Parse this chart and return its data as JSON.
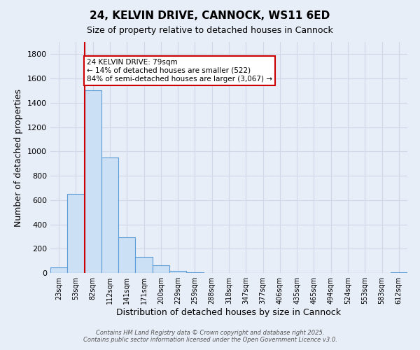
{
  "title": "24, KELVIN DRIVE, CANNOCK, WS11 6ED",
  "subtitle": "Size of property relative to detached houses in Cannock",
  "xlabel": "Distribution of detached houses by size in Cannock",
  "ylabel": "Number of detached properties",
  "bar_labels": [
    "23sqm",
    "53sqm",
    "82sqm",
    "112sqm",
    "141sqm",
    "171sqm",
    "200sqm",
    "229sqm",
    "259sqm",
    "288sqm",
    "318sqm",
    "347sqm",
    "377sqm",
    "406sqm",
    "435sqm",
    "465sqm",
    "494sqm",
    "524sqm",
    "553sqm",
    "583sqm",
    "612sqm"
  ],
  "bar_values": [
    45,
    650,
    1500,
    950,
    295,
    135,
    65,
    20,
    5,
    0,
    0,
    0,
    0,
    0,
    0,
    0,
    0,
    0,
    0,
    0,
    5
  ],
  "bar_color": "#cce0f5",
  "bar_edge_color": "#5b9bd5",
  "ylim": [
    0,
    1900
  ],
  "yticks": [
    0,
    200,
    400,
    600,
    800,
    1000,
    1200,
    1400,
    1600,
    1800
  ],
  "grid_color": "#d0d8e8",
  "background_color": "#e8eef8",
  "vline_x": 2,
  "vline_color": "#cc0000",
  "annotation_title": "24 KELVIN DRIVE: 79sqm",
  "annotation_line1": "← 14% of detached houses are smaller (522)",
  "annotation_line2": "84% of semi-detached houses are larger (3,067) →",
  "annotation_box_color": "#ffffff",
  "annotation_box_edge": "#cc0000",
  "footer1": "Contains HM Land Registry data © Crown copyright and database right 2025.",
  "footer2": "Contains public sector information licensed under the Open Government Licence v3.0."
}
